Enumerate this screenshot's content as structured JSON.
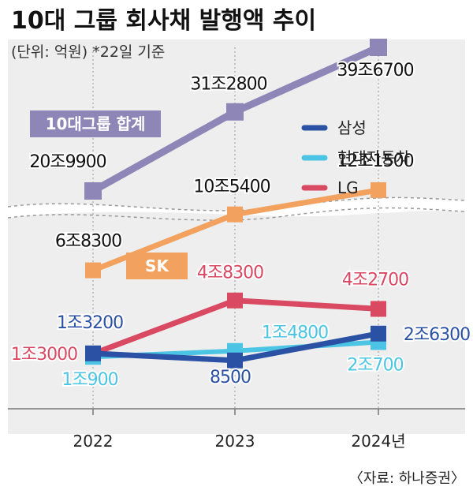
{
  "title": "10대 그룹 회사채 발행액 추이",
  "subtitle": "(단위: 억원)  *22일 기준",
  "source": "〈자료: 하나증권〉",
  "colors": {
    "total": "#8f86b8",
    "sk": "#f2a25e",
    "samsung": "#2b51a5",
    "hyundai": "#4cc4e4",
    "lg": "#d94962",
    "grid": "#9a9a9a",
    "band": "#eeeeee"
  },
  "chart_data": {
    "type": "line",
    "x": [
      "2022",
      "2023",
      "2024년"
    ],
    "series": [
      {
        "key": "total",
        "name": "10대그룹 합계",
        "values": [
          209900,
          312800,
          396700
        ],
        "labels": [
          "20조9900",
          "31조2800",
          "39조6700"
        ]
      },
      {
        "key": "sk",
        "name": "SK",
        "values": [
          68300,
          105400,
          121500
        ],
        "labels": [
          "6조8300",
          "10조5400",
          "12조1500"
        ]
      },
      {
        "key": "lg",
        "name": "LG",
        "values": [
          13000,
          48300,
          42700
        ],
        "labels": [
          "1조3000",
          "4조8300",
          "4조2700"
        ]
      },
      {
        "key": "samsung",
        "name": "삼성",
        "values": [
          13200,
          8500,
          26300
        ],
        "labels": [
          "1조3200",
          "8500",
          "2조6300"
        ]
      },
      {
        "key": "hyundai",
        "name": "현대자동차",
        "values": [
          10900,
          14800,
          20700
        ],
        "labels": [
          "1조900",
          "1조4800",
          "2조700"
        ]
      }
    ],
    "legend": [
      "삼성",
      "현대자동차",
      "LG"
    ],
    "axis_break": true
  }
}
